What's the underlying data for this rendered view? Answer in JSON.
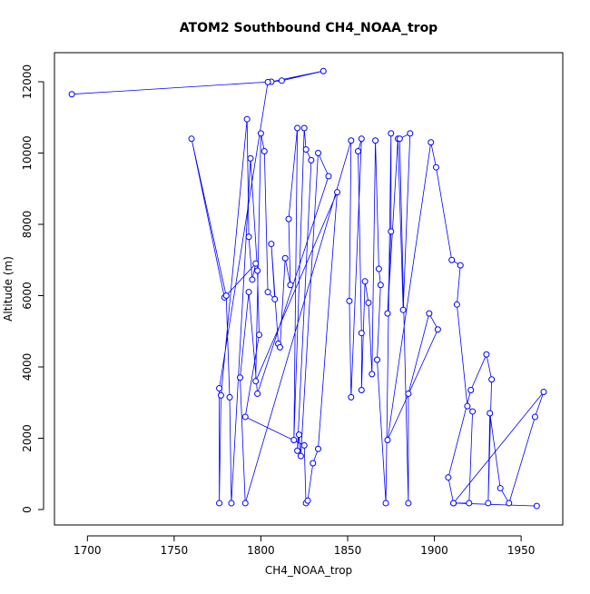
{
  "chart_data": {
    "type": "scatter-line",
    "title": "ATOM2 Southbound CH4_NOAA_trop",
    "x_label": "CH4_NOAA_trop",
    "y_label": "Altitude (m)",
    "color": "#0000ff",
    "xlim": [
      1681,
      1974
    ],
    "ylim": [
      -433,
      12815
    ],
    "xticks": [
      1700,
      1750,
      1800,
      1850,
      1900,
      1950
    ],
    "yticks": [
      0,
      2000,
      4000,
      6000,
      8000,
      10000,
      12000
    ],
    "x": [
      1691,
      1806,
      1836,
      1812,
      1804,
      1776,
      1776,
      1777,
      1792,
      1793,
      1795,
      1797,
      1779,
      1760,
      1780,
      1782,
      1783,
      1794,
      1798,
      1799,
      1791,
      1825,
      1826,
      1827,
      1830,
      1833,
      1844,
      1797,
      1800,
      1802,
      1804,
      1808,
      1806,
      1810,
      1811,
      1814,
      1817,
      1816,
      1821,
      1819,
      1825,
      1826,
      1829,
      1821,
      1822,
      1823,
      1833,
      1839,
      1798,
      1793,
      1788,
      1791,
      1852,
      1851,
      1852,
      1858,
      1856,
      1858,
      1858,
      1860,
      1862,
      1864,
      1866,
      1868,
      1869,
      1867,
      1872,
      1875,
      1875,
      1873,
      1879,
      1882,
      1886,
      1880,
      1885,
      1885,
      1897,
      1902,
      1873,
      1898,
      1901,
      1910,
      1915,
      1913,
      1919,
      1922,
      1920,
      1911,
      1908,
      1921,
      1930,
      1933,
      1931,
      1932,
      1938,
      1943,
      1958,
      1963,
      1911,
      1959
    ],
    "values": [
      11650,
      12000,
      12300,
      12030,
      11990,
      3400,
      180,
      3200,
      10950,
      7650,
      6450,
      6900,
      5950,
      10400,
      6000,
      3150,
      180,
      9850,
      6700,
      4900,
      2600,
      1800,
      180,
      250,
      1300,
      1700,
      8900,
      3600,
      10550,
      10050,
      6100,
      5900,
      7450,
      4650,
      4550,
      7050,
      6300,
      8150,
      10700,
      1950,
      10700,
      10100,
      9800,
      1650,
      2100,
      1500,
      10000,
      9350,
      3250,
      6100,
      3700,
      180,
      10350,
      5850,
      3150,
      10400,
      10050,
      4950,
      3350,
      6400,
      5800,
      3800,
      10350,
      6750,
      6300,
      4200,
      180,
      10550,
      7800,
      5500,
      10400,
      5600,
      10550,
      10400,
      180,
      3250,
      5500,
      5050,
      1950,
      10300,
      9600,
      7000,
      6850,
      5750,
      2900,
      2750,
      180,
      180,
      900,
      3350,
      4350,
      3650,
      180,
      2700,
      600,
      180,
      2600,
      3300,
      180,
      100
    ]
  }
}
